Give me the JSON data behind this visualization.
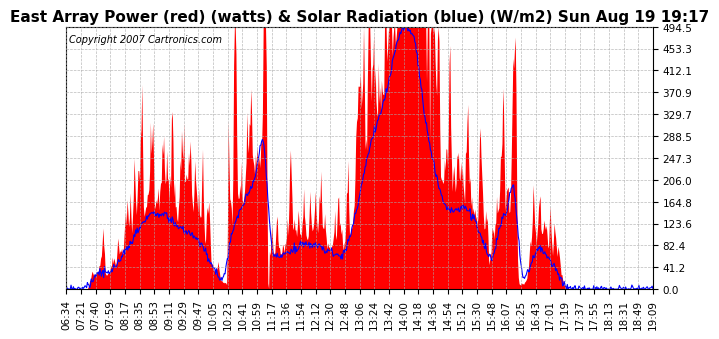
{
  "title": "East Array Power (red) (watts) & Solar Radiation (blue) (W/m2) Sun Aug 19 19:17",
  "copyright": "Copyright 2007 Cartronics.com",
  "yticks": [
    0.0,
    41.2,
    82.4,
    123.6,
    164.8,
    206.0,
    247.3,
    288.5,
    329.7,
    370.9,
    412.1,
    453.3,
    494.5
  ],
  "ylim": [
    0,
    494.5
  ],
  "xtick_labels": [
    "06:34",
    "07:21",
    "07:40",
    "07:59",
    "08:17",
    "08:35",
    "08:53",
    "09:11",
    "09:29",
    "09:47",
    "10:05",
    "10:23",
    "10:41",
    "10:59",
    "11:17",
    "11:36",
    "11:54",
    "12:12",
    "12:30",
    "12:48",
    "13:06",
    "13:24",
    "13:42",
    "14:00",
    "14:18",
    "14:36",
    "14:54",
    "15:12",
    "15:30",
    "15:48",
    "16:07",
    "16:25",
    "16:43",
    "17:01",
    "17:19",
    "17:37",
    "17:55",
    "18:13",
    "18:31",
    "18:49",
    "19:09"
  ],
  "background_color": "#ffffff",
  "grid_color": "#aaaaaa",
  "red_color": "#ff0000",
  "blue_color": "#0000ff",
  "title_fontsize": 11,
  "tick_fontsize": 7.5,
  "copyright_fontsize": 7
}
